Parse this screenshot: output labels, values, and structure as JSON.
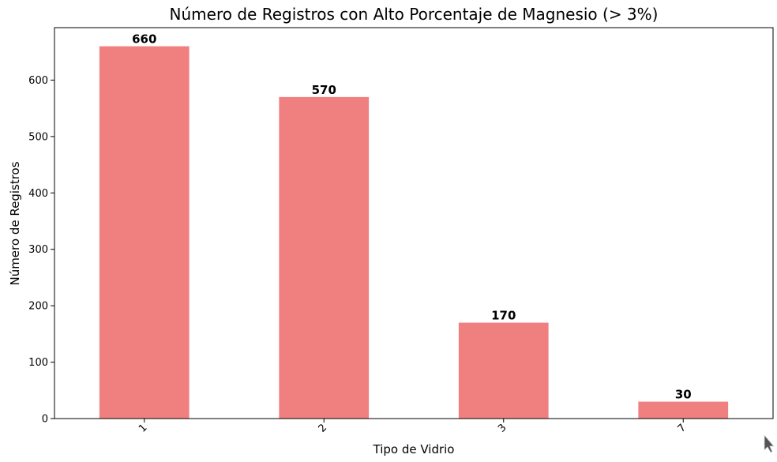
{
  "chart_data": {
    "type": "bar",
    "title": "Número de Registros con Alto Porcentaje de Magnesio (> 3%)",
    "xlabel": "Tipo de Vidrio",
    "ylabel": "Número de Registros",
    "categories": [
      "1",
      "2",
      "3",
      "7"
    ],
    "values": [
      660,
      570,
      170,
      30
    ],
    "data_labels": [
      "660",
      "570",
      "170",
      "30"
    ],
    "ylim": [
      0,
      693
    ],
    "yticks": [
      0,
      100,
      200,
      300,
      400,
      500,
      600
    ],
    "bar_color": "#f08080",
    "grid": false,
    "legend": "none",
    "xtick_rotation_deg": 45
  }
}
